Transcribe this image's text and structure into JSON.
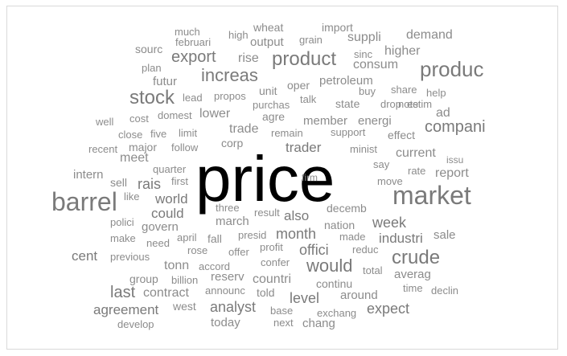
{
  "colors": {
    "top_word": "#000000",
    "large_word": "#7a7a7a",
    "small_word": "#8c8c8c",
    "frame_border": "#d9d9d9"
  },
  "words": [
    {
      "text": "price",
      "top": true
    },
    {
      "text": "market"
    },
    {
      "text": "barrel"
    },
    {
      "text": "crude"
    },
    {
      "text": "product"
    },
    {
      "text": "produc"
    },
    {
      "text": "stock"
    },
    {
      "text": "increas"
    },
    {
      "text": "compani"
    },
    {
      "text": "would"
    },
    {
      "text": "export"
    },
    {
      "text": "last"
    },
    {
      "text": "week"
    },
    {
      "text": "offici"
    },
    {
      "text": "expect"
    },
    {
      "text": "month"
    },
    {
      "text": "level"
    },
    {
      "text": "analyst"
    },
    {
      "text": "industri"
    },
    {
      "text": "also"
    },
    {
      "text": "trader"
    },
    {
      "text": "rais"
    },
    {
      "text": "world"
    },
    {
      "text": "could"
    },
    {
      "text": "report"
    },
    {
      "text": "current"
    },
    {
      "text": "agreement"
    },
    {
      "text": "cent"
    },
    {
      "text": "countri"
    },
    {
      "text": "demand"
    },
    {
      "text": "higher"
    },
    {
      "text": "consum"
    },
    {
      "text": "rise"
    },
    {
      "text": "suppli"
    },
    {
      "text": "output"
    },
    {
      "text": "trade"
    },
    {
      "text": "meet"
    },
    {
      "text": "lower"
    },
    {
      "text": "averag"
    },
    {
      "text": "tonn"
    },
    {
      "text": "contract"
    },
    {
      "text": "reserv"
    },
    {
      "text": "futur"
    },
    {
      "text": "petroleum"
    },
    {
      "text": "member"
    },
    {
      "text": "energi"
    },
    {
      "text": "effect"
    },
    {
      "text": "continu"
    },
    {
      "text": "around"
    },
    {
      "text": "today"
    },
    {
      "text": "chang"
    },
    {
      "text": "intern"
    },
    {
      "text": "govern"
    },
    {
      "text": "march"
    },
    {
      "text": "decemb"
    },
    {
      "text": "nation"
    },
    {
      "text": "sale"
    },
    {
      "text": "group"
    },
    {
      "text": "told"
    },
    {
      "text": "fall"
    },
    {
      "text": "sell"
    },
    {
      "text": "west"
    },
    {
      "text": "major"
    },
    {
      "text": "oper"
    },
    {
      "text": "state"
    },
    {
      "text": "corp"
    },
    {
      "text": "sourc"
    },
    {
      "text": "import"
    },
    {
      "text": "wheat"
    },
    {
      "text": "much"
    },
    {
      "text": "februari"
    },
    {
      "text": "high"
    },
    {
      "text": "grain"
    },
    {
      "text": "sinc"
    },
    {
      "text": "plan"
    },
    {
      "text": "unit"
    },
    {
      "text": "lead"
    },
    {
      "text": "propos"
    },
    {
      "text": "agre"
    },
    {
      "text": "talk"
    },
    {
      "text": "purchas"
    },
    {
      "text": "buy"
    },
    {
      "text": "share"
    },
    {
      "text": "drop"
    },
    {
      "text": "note"
    },
    {
      "text": "help"
    },
    {
      "text": "estim"
    },
    {
      "text": "well"
    },
    {
      "text": "cost"
    },
    {
      "text": "domest"
    },
    {
      "text": "close"
    },
    {
      "text": "five"
    },
    {
      "text": "limit"
    },
    {
      "text": "remain"
    },
    {
      "text": "support"
    },
    {
      "text": "recent"
    },
    {
      "text": "follow"
    },
    {
      "text": "minist"
    },
    {
      "text": "issu"
    },
    {
      "text": "quarter"
    },
    {
      "text": "first"
    },
    {
      "text": "firm"
    },
    {
      "text": "say"
    },
    {
      "text": "move"
    },
    {
      "text": "rate"
    },
    {
      "text": "like"
    },
    {
      "text": "three"
    },
    {
      "text": "result"
    },
    {
      "text": "polici"
    },
    {
      "text": "make"
    },
    {
      "text": "april"
    },
    {
      "text": "presid"
    },
    {
      "text": "made"
    },
    {
      "text": "need"
    },
    {
      "text": "rose"
    },
    {
      "text": "offer"
    },
    {
      "text": "profit"
    },
    {
      "text": "reduc"
    },
    {
      "text": "previous"
    },
    {
      "text": "accord"
    },
    {
      "text": "confer"
    },
    {
      "text": "total"
    },
    {
      "text": "billion"
    },
    {
      "text": "announc"
    },
    {
      "text": "time"
    },
    {
      "text": "declin"
    },
    {
      "text": "base"
    },
    {
      "text": "exchang"
    },
    {
      "text": "develop"
    },
    {
      "text": "next"
    },
    {
      "text": "ad"
    }
  ]
}
